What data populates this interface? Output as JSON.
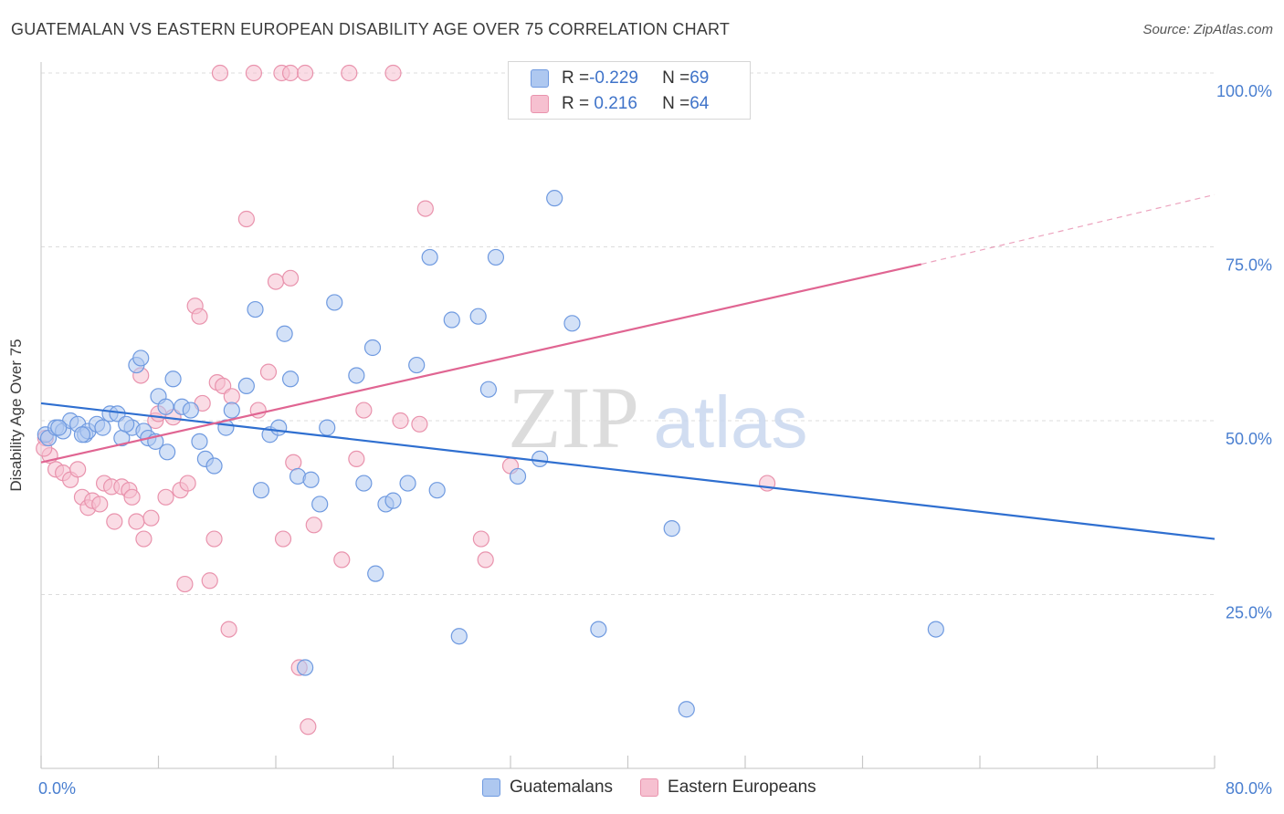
{
  "header": {
    "title": "GUATEMALAN VS EASTERN EUROPEAN DISABILITY AGE OVER 75 CORRELATION CHART",
    "source": "Source: ZipAtlas.com"
  },
  "watermark": {
    "zip": "ZIP",
    "atlas": "atlas"
  },
  "legend": {
    "rows": [
      {
        "r_label": "R = ",
        "r_value": "-0.229",
        "n_label": "N = ",
        "n_value": "69"
      },
      {
        "r_label": "R = ",
        "r_value": " 0.216",
        "n_label": "N = ",
        "n_value": "64"
      }
    ]
  },
  "bottom_legend": {
    "items": [
      {
        "label": "Guatemalans"
      },
      {
        "label": "Eastern Europeans"
      }
    ]
  },
  "colors": {
    "blue_fill": "#aec8f0",
    "blue_stroke": "#6f9ae0",
    "blue_line": "#2f6fd0",
    "pink_fill": "#f6c0d0",
    "pink_stroke": "#e993ad",
    "pink_line": "#e06592",
    "tick_text": "#4a7fd0"
  },
  "chart_data": {
    "type": "scatter",
    "title": "GUATEMALAN VS EASTERN EUROPEAN DISABILITY AGE OVER 75 CORRELATION CHART",
    "xlabel": "",
    "ylabel": "Disability Age Over 75",
    "xlim": [
      0,
      80
    ],
    "ylim": [
      0,
      100
    ],
    "x_tick_labels": [
      "0.0%",
      "80.0%"
    ],
    "y_ticks": [
      25,
      50,
      75,
      100
    ],
    "y_tick_labels": [
      "25.0%",
      "50.0%",
      "75.0%",
      "100.0%"
    ],
    "grid": "horizontal dashed",
    "series": [
      {
        "name": "Guatemalans",
        "color": "#aec8f0",
        "points": [
          [
            0.3,
            48
          ],
          [
            0.5,
            47.5
          ],
          [
            1.0,
            49
          ],
          [
            1.5,
            48.5
          ],
          [
            2.0,
            50
          ],
          [
            2.5,
            49.5
          ],
          [
            3.0,
            48
          ],
          [
            3.2,
            48.5
          ],
          [
            3.8,
            49.5
          ],
          [
            4.2,
            49
          ],
          [
            4.7,
            51
          ],
          [
            5.2,
            51
          ],
          [
            5.5,
            47.5
          ],
          [
            6.2,
            49
          ],
          [
            6.5,
            58
          ],
          [
            6.8,
            59
          ],
          [
            7.0,
            48.5
          ],
          [
            7.3,
            47.5
          ],
          [
            7.8,
            47
          ],
          [
            8.0,
            53.5
          ],
          [
            8.5,
            52
          ],
          [
            8.6,
            45.5
          ],
          [
            9.0,
            56
          ],
          [
            9.6,
            52
          ],
          [
            10.2,
            51.5
          ],
          [
            10.8,
            47
          ],
          [
            11.2,
            44.5
          ],
          [
            11.8,
            43.5
          ],
          [
            12.6,
            49
          ],
          [
            13.0,
            51.5
          ],
          [
            14.0,
            55
          ],
          [
            14.6,
            66
          ],
          [
            15.0,
            40
          ],
          [
            15.6,
            48
          ],
          [
            16.2,
            49
          ],
          [
            16.6,
            62.5
          ],
          [
            17.0,
            56
          ],
          [
            17.5,
            42
          ],
          [
            18.4,
            41.5
          ],
          [
            19.0,
            38
          ],
          [
            19.5,
            49
          ],
          [
            20.0,
            67
          ],
          [
            21.5,
            56.5
          ],
          [
            22.0,
            41
          ],
          [
            22.6,
            60.5
          ],
          [
            22.8,
            28
          ],
          [
            23.5,
            38
          ],
          [
            24.0,
            38.5
          ],
          [
            25.0,
            41
          ],
          [
            25.6,
            58
          ],
          [
            26.5,
            73.5
          ],
          [
            27.0,
            40
          ],
          [
            28.0,
            64.5
          ],
          [
            28.5,
            19
          ],
          [
            29.8,
            65
          ],
          [
            30.5,
            54.5
          ],
          [
            31.0,
            73.5
          ],
          [
            32.5,
            42
          ],
          [
            34.0,
            44.5
          ],
          [
            35.0,
            82
          ],
          [
            36.2,
            64
          ],
          [
            38.0,
            20
          ],
          [
            43.0,
            34.5
          ],
          [
            44.0,
            8.5
          ],
          [
            61.0,
            20
          ],
          [
            18.0,
            14.5
          ],
          [
            1.2,
            49
          ],
          [
            2.8,
            48
          ],
          [
            5.8,
            49.5
          ]
        ]
      },
      {
        "name": "Eastern Europeans",
        "color": "#f6c0d0",
        "points": [
          [
            0.3,
            47.5
          ],
          [
            0.6,
            45
          ],
          [
            1.0,
            43
          ],
          [
            1.5,
            42.5
          ],
          [
            2.0,
            41.5
          ],
          [
            2.5,
            43
          ],
          [
            2.8,
            39
          ],
          [
            3.2,
            37.5
          ],
          [
            3.5,
            38.5
          ],
          [
            4.0,
            38
          ],
          [
            4.3,
            41
          ],
          [
            4.8,
            40.5
          ],
          [
            5.0,
            35.5
          ],
          [
            5.5,
            40.5
          ],
          [
            6.0,
            40
          ],
          [
            6.2,
            39
          ],
          [
            6.5,
            35.5
          ],
          [
            6.8,
            56.5
          ],
          [
            7.0,
            33
          ],
          [
            7.5,
            36
          ],
          [
            7.8,
            50
          ],
          [
            8.0,
            51
          ],
          [
            8.5,
            39
          ],
          [
            9.0,
            50.5
          ],
          [
            9.5,
            40
          ],
          [
            9.8,
            26.5
          ],
          [
            10.0,
            41
          ],
          [
            10.5,
            66.5
          ],
          [
            10.8,
            65
          ],
          [
            11.0,
            52.5
          ],
          [
            11.5,
            27
          ],
          [
            11.8,
            33
          ],
          [
            12.0,
            55.5
          ],
          [
            12.4,
            55
          ],
          [
            12.8,
            20
          ],
          [
            13.0,
            53.5
          ],
          [
            14.0,
            79
          ],
          [
            14.8,
            51.5
          ],
          [
            15.5,
            57
          ],
          [
            16.0,
            70
          ],
          [
            16.5,
            33
          ],
          [
            17.0,
            70.5
          ],
          [
            17.2,
            44
          ],
          [
            17.6,
            14.5
          ],
          [
            18.2,
            6
          ],
          [
            18.6,
            35
          ],
          [
            20.5,
            30
          ],
          [
            21.5,
            44.5
          ],
          [
            22.0,
            51.5
          ],
          [
            24.5,
            50
          ],
          [
            25.8,
            49.5
          ],
          [
            26.2,
            80.5
          ],
          [
            30.0,
            33
          ],
          [
            30.3,
            30
          ],
          [
            32.0,
            43.5
          ],
          [
            49.5,
            41
          ],
          [
            12.2,
            100
          ],
          [
            14.5,
            100
          ],
          [
            16.4,
            100
          ],
          [
            17.0,
            100
          ],
          [
            18.0,
            100
          ],
          [
            21.0,
            100
          ],
          [
            24.0,
            100
          ],
          [
            0.2,
            46
          ]
        ]
      }
    ],
    "trendlines": [
      {
        "series": "Guatemalans",
        "x": [
          0,
          80
        ],
        "y": [
          52.5,
          33.0
        ],
        "style": "solid"
      },
      {
        "series": "Eastern Europeans",
        "x": [
          0,
          60
        ],
        "y": [
          44.0,
          72.5
        ],
        "style": "solid"
      },
      {
        "series": "Eastern Europeans",
        "x": [
          60,
          80
        ],
        "y": [
          72.5,
          82.5
        ],
        "style": "dashed"
      }
    ]
  }
}
